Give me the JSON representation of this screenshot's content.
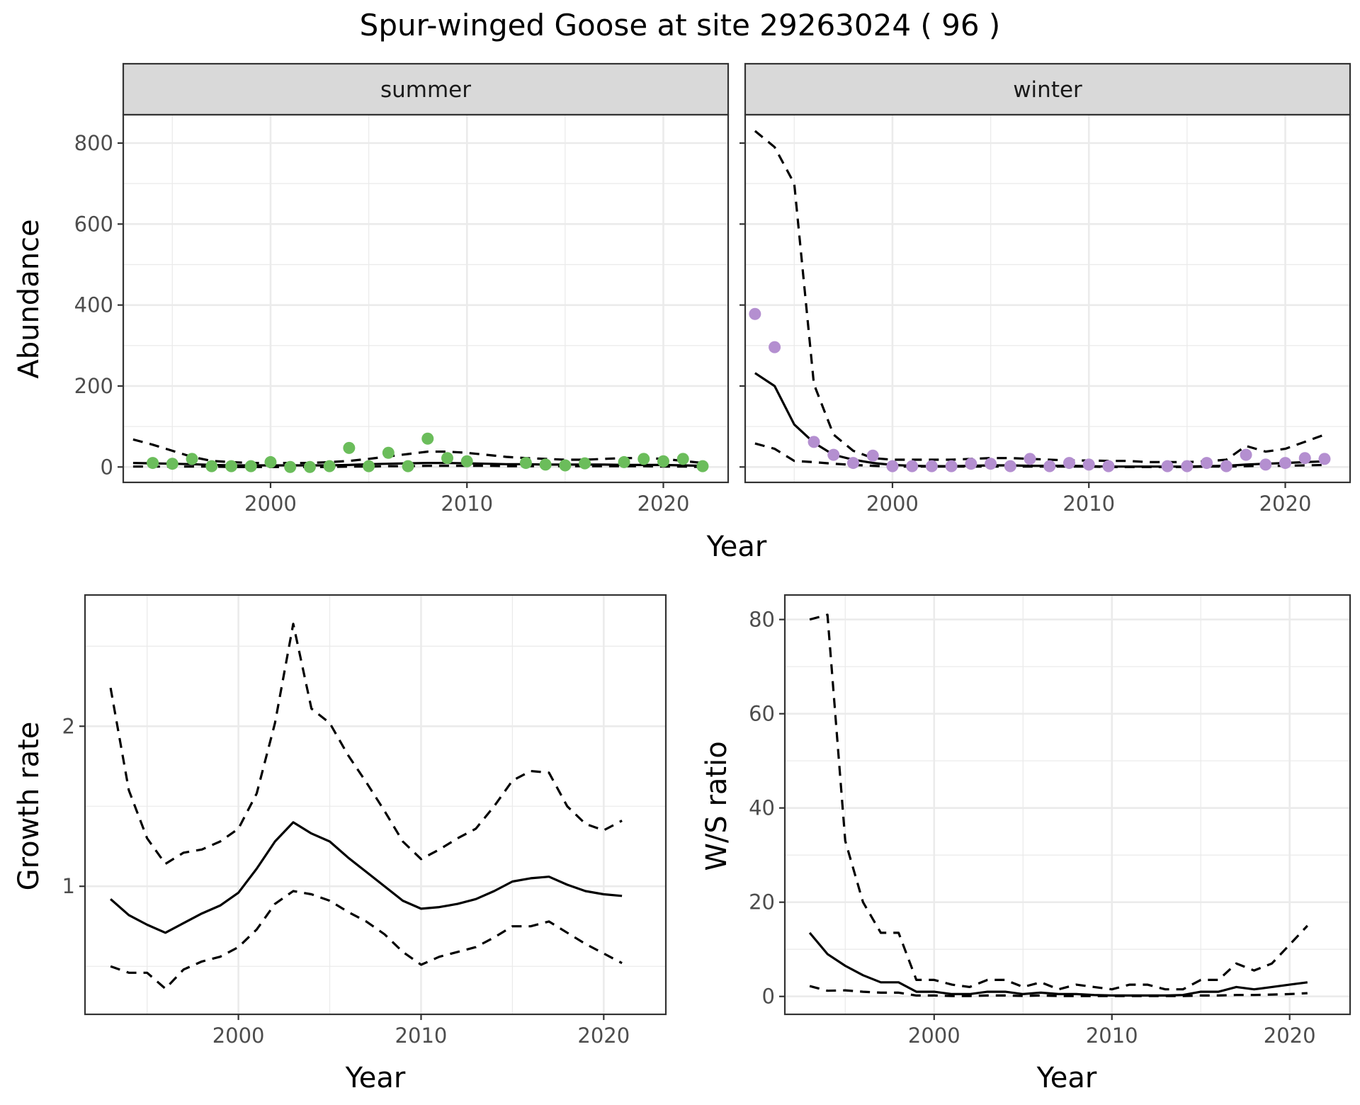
{
  "figure": {
    "title": "Spur-winged Goose at site 29263024 ( 96 )",
    "shared_xlabel": "Year"
  },
  "colors": {
    "summer_points": "#6bbd5b",
    "winter_points": "#b48fd0",
    "lines": "#000000",
    "strip_background": "#d9d9d9"
  },
  "chart_data": [
    {
      "id": "abundance-summer",
      "type": "line",
      "facet": "summer",
      "xlabel": "Year",
      "ylabel": "Abundance",
      "xlim": [
        1992.5,
        2023.3
      ],
      "ylim": [
        -38,
        870
      ],
      "x_ticks": [
        2000,
        2010,
        2020
      ],
      "y_ticks": [
        0,
        200,
        400,
        600,
        800
      ],
      "y_tick_labels": [
        "0",
        "200",
        "400",
        "600",
        "800"
      ],
      "show_y_tick_labels": true,
      "grid": true,
      "series": [
        {
          "role": "mean",
          "style": "solid",
          "x": [
            1993,
            1994,
            1995,
            1996,
            1997,
            1998,
            1999,
            2000,
            2001,
            2002,
            2003,
            2004,
            2005,
            2006,
            2007,
            2008,
            2009,
            2010,
            2011,
            2012,
            2013,
            2014,
            2015,
            2016,
            2017,
            2018,
            2019,
            2020,
            2021,
            2022
          ],
          "values": [
            10,
            9,
            8,
            7,
            5,
            4,
            4,
            4,
            4,
            4,
            4,
            5,
            7,
            8,
            9,
            10,
            10,
            9,
            8,
            7,
            7,
            6,
            6,
            6,
            6,
            5,
            5,
            5,
            4,
            3
          ]
        },
        {
          "role": "upper",
          "style": "dashed",
          "x": [
            1993,
            1994,
            1995,
            1996,
            1997,
            1998,
            1999,
            2000,
            2001,
            2002,
            2003,
            2004,
            2005,
            2006,
            2007,
            2008,
            2009,
            2010,
            2011,
            2012,
            2013,
            2014,
            2015,
            2016,
            2017,
            2018,
            2019,
            2020,
            2021,
            2022
          ],
          "values": [
            68,
            55,
            40,
            25,
            15,
            12,
            10,
            10,
            10,
            10,
            12,
            15,
            20,
            26,
            32,
            38,
            38,
            35,
            30,
            25,
            22,
            20,
            18,
            18,
            20,
            22,
            22,
            20,
            15,
            10
          ]
        },
        {
          "role": "lower",
          "style": "dashed",
          "x": [
            1993,
            1994,
            1995,
            1996,
            1997,
            1998,
            1999,
            2000,
            2001,
            2002,
            2003,
            2004,
            2005,
            2006,
            2007,
            2008,
            2009,
            2010,
            2011,
            2012,
            2013,
            2014,
            2015,
            2016,
            2017,
            2018,
            2019,
            2020,
            2021,
            2022
          ],
          "values": [
            1,
            1,
            1,
            1,
            1,
            0,
            0,
            0,
            0,
            0,
            0,
            1,
            1,
            2,
            2,
            3,
            3,
            3,
            3,
            2,
            2,
            2,
            2,
            2,
            2,
            2,
            2,
            1,
            1,
            0
          ]
        },
        {
          "role": "observed",
          "style": "points",
          "x": [
            1994,
            1995,
            1996,
            1997,
            1998,
            1999,
            2000,
            2001,
            2002,
            2003,
            2004,
            2005,
            2006,
            2007,
            2008,
            2009,
            2010,
            2013,
            2014,
            2015,
            2016,
            2018,
            2019,
            2020,
            2021,
            2022
          ],
          "values": [
            10,
            8,
            20,
            2,
            2,
            2,
            12,
            0,
            0,
            2,
            47,
            2,
            35,
            2,
            70,
            22,
            14,
            10,
            6,
            4,
            9,
            12,
            20,
            14,
            20,
            2
          ]
        }
      ]
    },
    {
      "id": "abundance-winter",
      "type": "line",
      "facet": "winter",
      "xlabel": "Year",
      "ylabel": "",
      "xlim": [
        1992.5,
        2023.3
      ],
      "ylim": [
        -38,
        870
      ],
      "x_ticks": [
        2000,
        2010,
        2020
      ],
      "y_ticks": [
        0,
        200,
        400,
        600,
        800
      ],
      "show_y_tick_labels": false,
      "grid": true,
      "series": [
        {
          "role": "mean",
          "style": "solid",
          "x": [
            1993,
            1994,
            1995,
            1996,
            1997,
            1998,
            1999,
            2000,
            2001,
            2002,
            2003,
            2004,
            2005,
            2006,
            2007,
            2008,
            2009,
            2010,
            2011,
            2012,
            2013,
            2014,
            2015,
            2016,
            2017,
            2018,
            2019,
            2020,
            2021,
            2022
          ],
          "values": [
            232,
            200,
            105,
            60,
            30,
            18,
            10,
            5,
            3,
            2,
            2,
            3,
            4,
            4,
            3,
            3,
            3,
            2,
            1,
            1,
            1,
            1,
            1,
            2,
            3,
            6,
            8,
            10,
            12,
            14
          ]
        },
        {
          "role": "upper",
          "style": "dashed",
          "x": [
            1993,
            1994,
            1995,
            1996,
            1997,
            1998,
            1999,
            2000,
            2001,
            2002,
            2003,
            2004,
            2005,
            2006,
            2007,
            2008,
            2009,
            2010,
            2011,
            2012,
            2013,
            2014,
            2015,
            2016,
            2017,
            2018,
            2019,
            2020,
            2021,
            2022
          ],
          "values": [
            830,
            790,
            700,
            205,
            80,
            40,
            22,
            18,
            18,
            18,
            18,
            20,
            22,
            22,
            20,
            18,
            16,
            16,
            15,
            15,
            12,
            12,
            12,
            14,
            18,
            52,
            38,
            45,
            62,
            80
          ]
        },
        {
          "role": "lower",
          "style": "dashed",
          "x": [
            1993,
            1994,
            1995,
            1996,
            1997,
            1998,
            1999,
            2000,
            2001,
            2002,
            2003,
            2004,
            2005,
            2006,
            2007,
            2008,
            2009,
            2010,
            2011,
            2012,
            2013,
            2014,
            2015,
            2016,
            2017,
            2018,
            2019,
            2020,
            2021,
            2022
          ],
          "values": [
            58,
            45,
            15,
            12,
            8,
            5,
            3,
            1,
            1,
            1,
            1,
            1,
            1,
            1,
            1,
            1,
            1,
            1,
            0,
            0,
            0,
            0,
            0,
            1,
            1,
            2,
            3,
            3,
            4,
            5
          ]
        },
        {
          "role": "observed",
          "style": "points",
          "x": [
            1993,
            1994,
            1996,
            1997,
            1998,
            1999,
            2000,
            2001,
            2002,
            2003,
            2004,
            2005,
            2006,
            2007,
            2008,
            2009,
            2010,
            2011,
            2014,
            2015,
            2016,
            2017,
            2018,
            2019,
            2020,
            2021,
            2022
          ],
          "values": [
            378,
            296,
            62,
            30,
            10,
            28,
            2,
            2,
            2,
            2,
            8,
            8,
            2,
            20,
            2,
            10,
            6,
            2,
            2,
            2,
            10,
            2,
            30,
            6,
            10,
            22,
            20
          ]
        }
      ]
    },
    {
      "id": "growth-rate",
      "type": "line",
      "xlabel": "Year",
      "ylabel": "Growth rate",
      "xlim": [
        1991.6,
        2023.4
      ],
      "ylim": [
        0.2,
        2.82
      ],
      "x_ticks": [
        2000,
        2010,
        2020
      ],
      "y_ticks": [
        1,
        2
      ],
      "y_tick_labels": [
        "1",
        "2"
      ],
      "show_y_tick_labels": true,
      "grid": true,
      "series": [
        {
          "role": "mean",
          "style": "solid",
          "x": [
            1993,
            1994,
            1995,
            1996,
            1997,
            1998,
            1999,
            2000,
            2001,
            2002,
            2003,
            2004,
            2005,
            2006,
            2007,
            2008,
            2009,
            2010,
            2011,
            2012,
            2013,
            2014,
            2015,
            2016,
            2017,
            2018,
            2019,
            2020,
            2021
          ],
          "values": [
            0.92,
            0.82,
            0.76,
            0.71,
            0.77,
            0.83,
            0.88,
            0.96,
            1.11,
            1.28,
            1.4,
            1.33,
            1.28,
            1.18,
            1.09,
            1.0,
            0.91,
            0.86,
            0.87,
            0.89,
            0.92,
            0.97,
            1.03,
            1.05,
            1.06,
            1.01,
            0.97,
            0.95,
            0.94
          ]
        },
        {
          "role": "upper",
          "style": "dashed",
          "x": [
            1993,
            1994,
            1995,
            1996,
            1997,
            1998,
            1999,
            2000,
            2001,
            2002,
            2003,
            2004,
            2005,
            2006,
            2007,
            2008,
            2009,
            2010,
            2011,
            2012,
            2013,
            2014,
            2015,
            2016,
            2017,
            2018,
            2019,
            2020,
            2021
          ],
          "values": [
            2.24,
            1.6,
            1.3,
            1.14,
            1.21,
            1.23,
            1.28,
            1.36,
            1.58,
            2.02,
            2.64,
            2.11,
            2.02,
            1.82,
            1.65,
            1.47,
            1.28,
            1.17,
            1.23,
            1.3,
            1.36,
            1.5,
            1.66,
            1.72,
            1.71,
            1.5,
            1.39,
            1.35,
            1.41
          ]
        },
        {
          "role": "lower",
          "style": "dashed",
          "x": [
            1993,
            1994,
            1995,
            1996,
            1997,
            1998,
            1999,
            2000,
            2001,
            2002,
            2003,
            2004,
            2005,
            2006,
            2007,
            2008,
            2009,
            2010,
            2011,
            2012,
            2013,
            2014,
            2015,
            2016,
            2017,
            2018,
            2019,
            2020,
            2021
          ],
          "values": [
            0.5,
            0.46,
            0.46,
            0.36,
            0.48,
            0.53,
            0.56,
            0.62,
            0.73,
            0.89,
            0.97,
            0.95,
            0.91,
            0.84,
            0.78,
            0.7,
            0.59,
            0.51,
            0.56,
            0.59,
            0.62,
            0.68,
            0.75,
            0.75,
            0.78,
            0.71,
            0.64,
            0.58,
            0.52
          ]
        }
      ]
    },
    {
      "id": "ws-ratio",
      "type": "line",
      "xlabel": "Year",
      "ylabel": "W/S ratio",
      "xlim": [
        1991.6,
        2023.4
      ],
      "ylim": [
        -3.8,
        85.2
      ],
      "x_ticks": [
        2000,
        2010,
        2020
      ],
      "y_ticks": [
        0,
        20,
        40,
        60,
        80
      ],
      "y_tick_labels": [
        "0",
        "20",
        "40",
        "60",
        "80"
      ],
      "show_y_tick_labels": true,
      "grid": true,
      "series": [
        {
          "role": "mean",
          "style": "solid",
          "x": [
            1993,
            1994,
            1995,
            1996,
            1997,
            1998,
            1999,
            2000,
            2001,
            2002,
            2003,
            2004,
            2005,
            2006,
            2007,
            2008,
            2009,
            2010,
            2011,
            2012,
            2013,
            2014,
            2015,
            2016,
            2017,
            2018,
            2019,
            2020,
            2021
          ],
          "values": [
            13.5,
            9.0,
            6.5,
            4.5,
            3.0,
            3.0,
            1.0,
            1.0,
            0.5,
            0.5,
            1.0,
            1.0,
            0.5,
            0.8,
            0.5,
            0.5,
            0.3,
            0.2,
            0.2,
            0.2,
            0.2,
            0.3,
            1.0,
            1.0,
            2.0,
            1.5,
            2.0,
            2.5,
            3.0
          ]
        },
        {
          "role": "upper",
          "style": "dashed",
          "x": [
            1993,
            1994,
            1995,
            1996,
            1997,
            1998,
            1999,
            2000,
            2001,
            2002,
            2003,
            2004,
            2005,
            2006,
            2007,
            2008,
            2009,
            2010,
            2011,
            2012,
            2013,
            2014,
            2015,
            2016,
            2017,
            2018,
            2019,
            2020,
            2021
          ],
          "values": [
            80.0,
            81.0,
            33.0,
            20.0,
            13.5,
            13.5,
            3.5,
            3.5,
            2.5,
            2.0,
            3.5,
            3.5,
            2.0,
            3.0,
            1.5,
            2.5,
            2.0,
            1.5,
            2.5,
            2.5,
            1.5,
            1.5,
            3.5,
            3.5,
            7.0,
            5.5,
            7.0,
            11.0,
            15.0
          ]
        },
        {
          "role": "lower",
          "style": "dashed",
          "x": [
            1993,
            1994,
            1995,
            1996,
            1997,
            1998,
            1999,
            2000,
            2001,
            2002,
            2003,
            2004,
            2005,
            2006,
            2007,
            2008,
            2009,
            2010,
            2011,
            2012,
            2013,
            2014,
            2015,
            2016,
            2017,
            2018,
            2019,
            2020,
            2021
          ],
          "values": [
            2.2,
            1.2,
            1.3,
            1.0,
            0.8,
            0.8,
            0.2,
            0.2,
            0.1,
            0.1,
            0.2,
            0.2,
            0.1,
            0.2,
            0.1,
            0.1,
            0.1,
            0.1,
            0.1,
            0.1,
            0.1,
            0.1,
            0.2,
            0.2,
            0.3,
            0.3,
            0.4,
            0.5,
            0.7
          ]
        }
      ]
    }
  ]
}
